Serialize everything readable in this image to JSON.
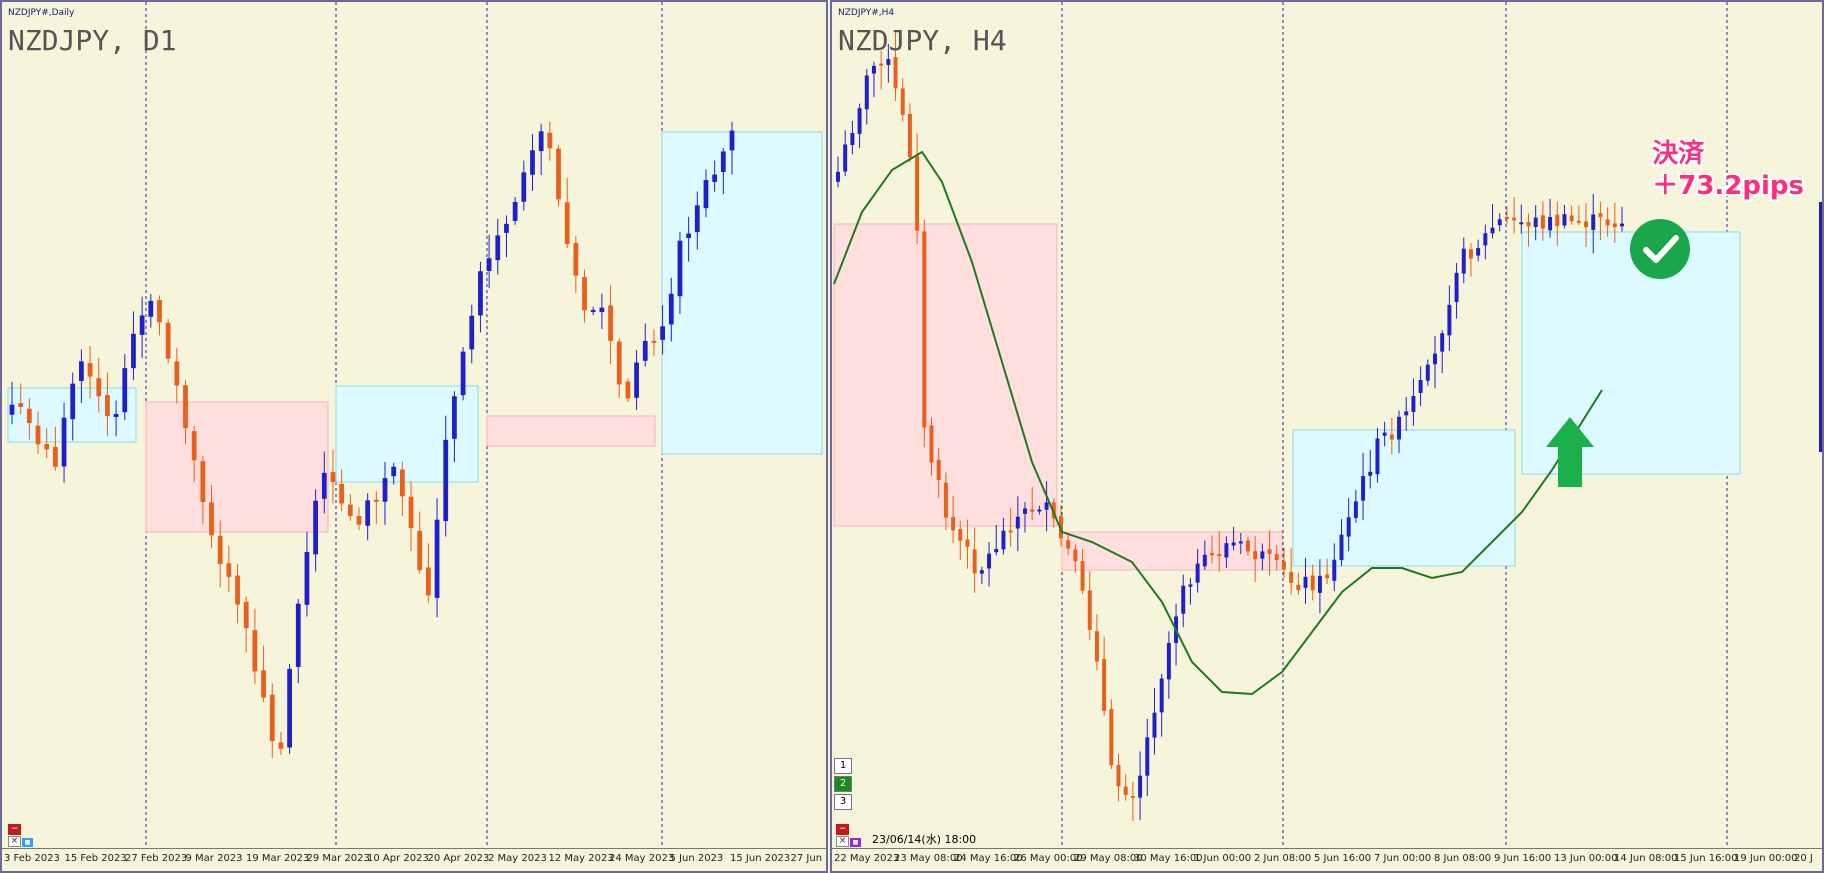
{
  "left_chart": {
    "small_title": "NZDJPY#,Daily",
    "big_title": "NZDJPY, D1",
    "x_labels": [
      "3 Feb 2023",
      "15 Feb 2023",
      "27 Feb 2023",
      "9 Mar 2023",
      "19 Mar 2023",
      "29 Mar 2023",
      "10 Apr 2023",
      "20 Apr 2023",
      "2 May 2023",
      "12 May 2023",
      "24 May 2023",
      "5 Jun 2023",
      "15 Jun 2023",
      "27 Jun 2"
    ],
    "bottom_buttons": [
      "−",
      "×",
      "■"
    ]
  },
  "right_chart": {
    "small_title": "NZDJPY#,H4",
    "big_title": "NZDJPY, H4",
    "x_labels": [
      "22 May 2023",
      "23 May 08:00",
      "24 May 16:00",
      "26 May 00:00",
      "29 May 08:00",
      "30 May 16:00",
      "1 Jun 00:00",
      "2 Jun 08:00",
      "5 Jun 16:00",
      "7 Jun 00:00",
      "8 Jun 08:00",
      "9 Jun 16:00",
      "13 Jun 00:00",
      "14 Jun 08:00",
      "15 Jun 16:00",
      "19 Jun 00:00",
      "20 J"
    ],
    "timeframe_buttons": [
      "1",
      "2",
      "3"
    ],
    "timestamp": "23/06/14(水) 18:00",
    "annotation_line1": "決済",
    "annotation_line2": "＋73.2pips",
    "check_icon": "check-circle-icon",
    "arrow_icon": "up-arrow-icon"
  },
  "colors": {
    "bull": "#2020c8",
    "bear": "#e8601c",
    "background": "#f7f4dc",
    "supply_zone": "#ffdede",
    "demand_zone": "#dcfaff",
    "moving_average": "#1e7a1e",
    "annotation": "#ff2d7c",
    "check": "#1aa64a",
    "arrow": "#1ab04a"
  }
}
